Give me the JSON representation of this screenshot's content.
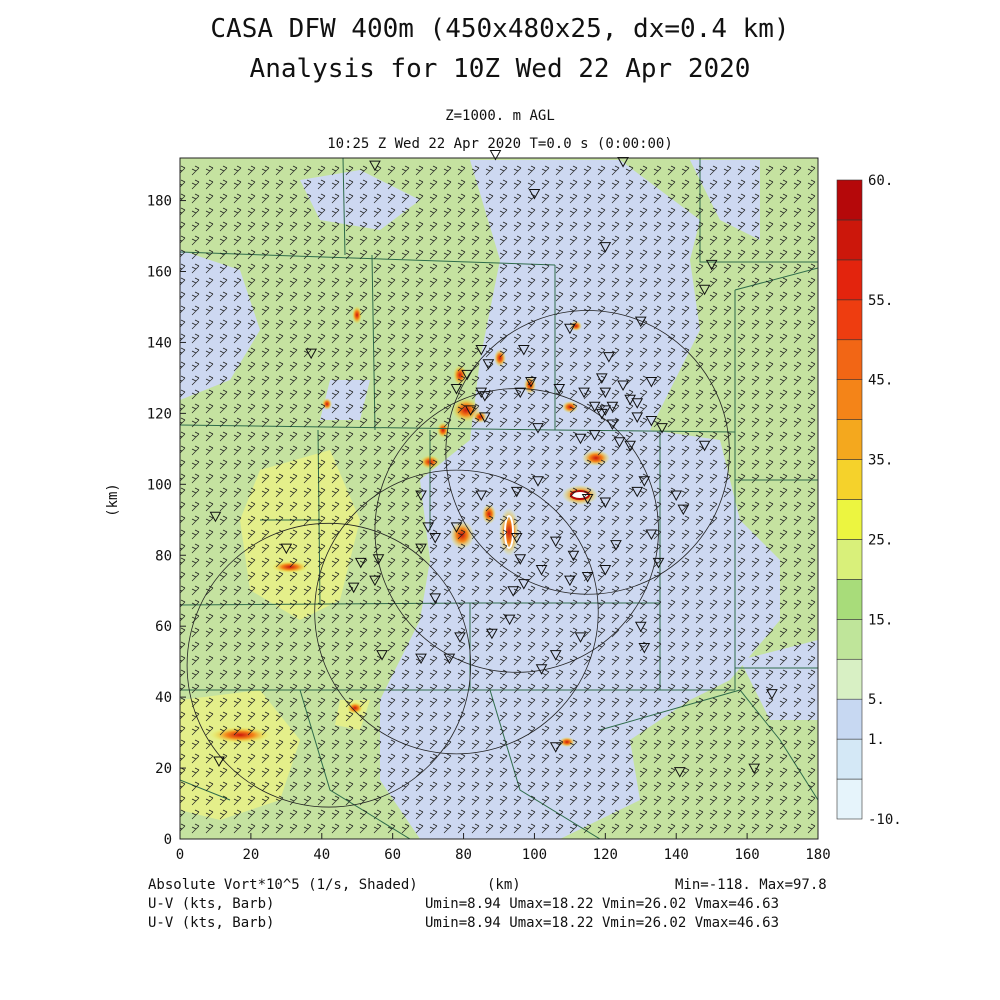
{
  "header": {
    "title_line1": "CASA DFW 400m (450x480x25, dx=0.4 km)",
    "title_line2": "Analysis for 10Z Wed 22 Apr 2020",
    "level": "Z=1000. m AGL",
    "valid_time": "10:25 Z Wed 22 Apr 2020    T=0.0 s (0:00:00)"
  },
  "footer": {
    "field_label": "Absolute Vort*10^5 (1/s, Shaded)",
    "xunit": "(km)",
    "minmax": "Min=-118. Max=97.8",
    "uv_label_1": "U-V (kts, Barb)",
    "uv_stats_1": "Umin=8.94 Umax=18.22 Vmin=26.02 Vmax=46.63",
    "uv_label_2": "U-V (kts, Barb)",
    "uv_stats_2": "Umin=8.94 Umax=18.22 Vmin=26.02 Vmax=46.63"
  },
  "chart_data": {
    "type": "heatmap",
    "xlabel": "(km)",
    "ylabel": "(km)",
    "xlim": [
      0,
      180
    ],
    "ylim": [
      0,
      192
    ],
    "xticks": [
      0,
      20,
      40,
      60,
      80,
      100,
      120,
      140,
      160,
      180
    ],
    "yticks": [
      0,
      20,
      40,
      60,
      80,
      100,
      120,
      140,
      160,
      180
    ],
    "colorbar": {
      "levels": [
        -10,
        1,
        5,
        15,
        25,
        35,
        45,
        55,
        60
      ],
      "labels": [
        "-10.",
        "1.",
        "5.",
        "15.",
        "25.",
        "35.",
        "45.",
        "55.",
        "60."
      ],
      "colors": [
        "#e6f4fb",
        "#d4e8f6",
        "#c7d8f2",
        "#d8f0c4",
        "#bfe59a",
        "#a8dc7a",
        "#d9f07a",
        "#ecf540",
        "#f5d22b",
        "#f4a81e",
        "#f48418",
        "#f26615",
        "#ee3d10",
        "#e3240d",
        "#cc170b",
        "#b5080a"
      ]
    },
    "wind": {
      "u_min_kts": 8.94,
      "u_max_kts": 18.22,
      "v_min_kts": 26.02,
      "v_max_kts": 46.63
    },
    "radar_rings": [
      {
        "center": [
          115,
          109
        ],
        "radius": 40
      },
      {
        "center": [
          95,
          87
        ],
        "radius": 40
      },
      {
        "center": [
          78,
          64
        ],
        "radius": 40
      },
      {
        "center": [
          42,
          49
        ],
        "radius": 40
      }
    ],
    "vorticity_min": -118,
    "vorticity_max": 97.8
  }
}
